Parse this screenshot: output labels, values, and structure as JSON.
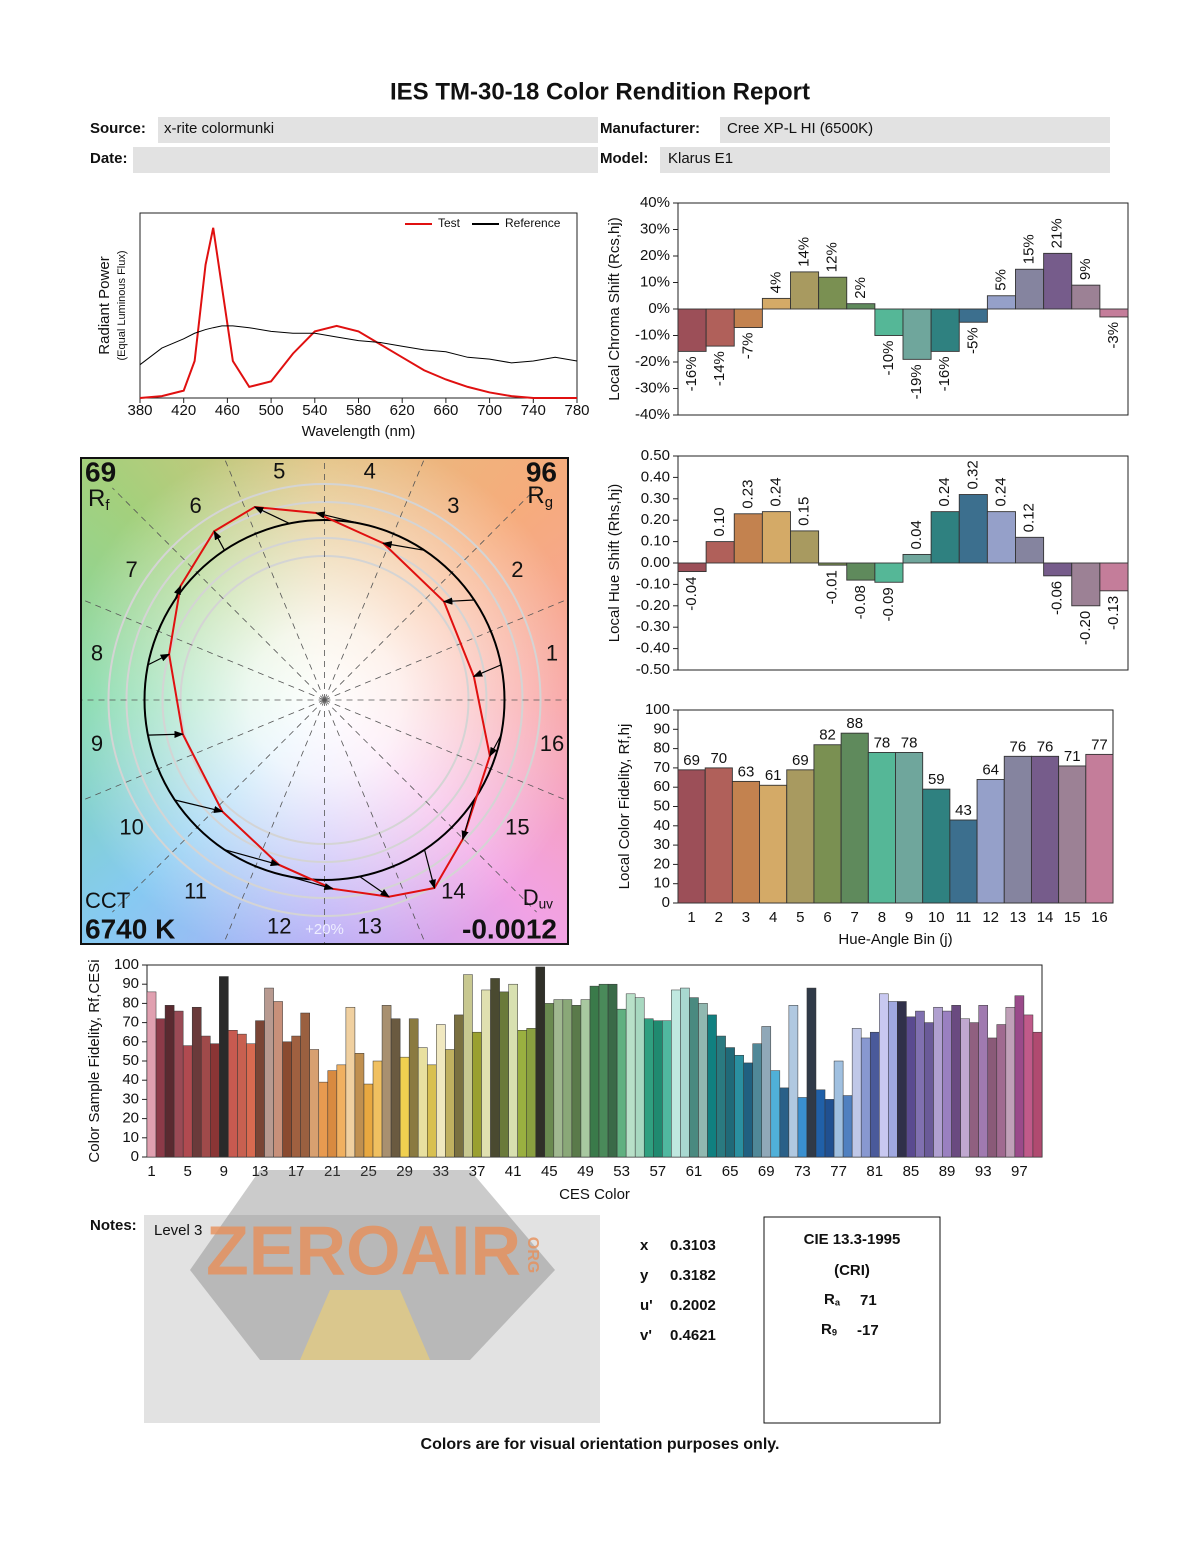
{
  "header": {
    "title": "IES TM-30-18 Color Rendition Report",
    "fields": [
      {
        "label": "Source:",
        "value": "x-rite colormunki"
      },
      {
        "label": "Manufacturer:",
        "value": "Cree XP-L HI (6500K)"
      },
      {
        "label": "Date:"
      },
      {
        "label": "Model:",
        "value": "Klarus E1"
      }
    ]
  },
  "chart_data": [
    {
      "type": "line",
      "ylabel": "Radiant Power",
      "ylabel_sub": "(Equal Luminous Flux)",
      "xlabel": "Wavelength (nm)",
      "x": [
        380,
        400,
        420,
        430,
        440,
        447,
        455,
        465,
        480,
        500,
        520,
        540,
        560,
        580,
        600,
        620,
        640,
        660,
        680,
        700,
        720,
        740,
        760,
        780
      ],
      "series": [
        {
          "name": "Test",
          "color": "#e01010",
          "values": [
            0,
            0.01,
            0.04,
            0.2,
            0.72,
            0.92,
            0.6,
            0.2,
            0.06,
            0.09,
            0.24,
            0.36,
            0.39,
            0.36,
            0.29,
            0.22,
            0.15,
            0.1,
            0.06,
            0.03,
            0.01,
            0,
            0,
            0
          ]
        },
        {
          "name": "Reference",
          "color": "#000000",
          "values": [
            0.18,
            0.27,
            0.32,
            0.35,
            0.37,
            0.38,
            0.39,
            0.39,
            0.38,
            0.36,
            0.35,
            0.35,
            0.33,
            0.31,
            0.3,
            0.28,
            0.26,
            0.25,
            0.22,
            0.21,
            0.19,
            0.2,
            0.22,
            0.2
          ]
        }
      ],
      "xlim": [
        380,
        780
      ],
      "xticks": [
        380,
        420,
        460,
        500,
        540,
        580,
        620,
        660,
        700,
        740,
        780
      ],
      "ylim": [
        0,
        1
      ],
      "legend": "upper right"
    },
    {
      "type": "bar",
      "ylabel": "Local Chroma Shift (Rcs,hj)",
      "values": [
        -16,
        -14,
        -7,
        4,
        14,
        12,
        2,
        -10,
        -19,
        -16,
        -5,
        5,
        15,
        21,
        9,
        -3
      ],
      "value_labels": [
        "-16%",
        "-14%",
        "-7%",
        "4%",
        "14%",
        "12%",
        "2%",
        "-10%",
        "-19%",
        "-16%",
        "-5%",
        "5%",
        "15%",
        "21%",
        "9%",
        "-3%"
      ],
      "colors": [
        "#9c4f58",
        "#b0605a",
        "#c3824f",
        "#d4aa67",
        "#a89a60",
        "#7a9052",
        "#5f8a5c",
        "#55b797",
        "#6fa69c",
        "#2f8180",
        "#3c6f8e",
        "#95a0c9",
        "#85849f",
        "#765c8b",
        "#9c8195",
        "#c47d9a"
      ],
      "ylim": [
        -40,
        40
      ],
      "yticks": [
        {
          "value": -40,
          "label": "-40%"
        },
        {
          "value": -30,
          "label": "-30%"
        },
        {
          "value": -20,
          "label": "-20%"
        },
        {
          "value": -10,
          "label": "-10%"
        },
        {
          "value": 0,
          "label": "0%"
        },
        {
          "value": 10,
          "label": "10%"
        },
        {
          "value": 20,
          "label": "20%"
        },
        {
          "value": 30,
          "label": "30%"
        },
        {
          "value": 40,
          "label": "40%"
        }
      ]
    },
    {
      "type": "bar",
      "ylabel": "Local Hue Shift (Rhs,hj)",
      "values": [
        -0.04,
        0.1,
        0.23,
        0.24,
        0.15,
        -0.01,
        -0.08,
        -0.09,
        0.04,
        0.24,
        0.32,
        0.24,
        0.12,
        -0.06,
        -0.2,
        -0.13
      ],
      "value_labels": [
        "-0.04",
        "0.10",
        "0.23",
        "0.24",
        "0.15",
        "-0.01",
        "-0.08",
        "-0.09",
        "0.04",
        "0.24",
        "0.32",
        "0.24",
        "0.12",
        "-0.06",
        "-0.20",
        "-0.13"
      ],
      "colors": [
        "#9c4f58",
        "#b0605a",
        "#c3824f",
        "#d4aa67",
        "#a89a60",
        "#7a9052",
        "#5f8a5c",
        "#55b797",
        "#6fa69c",
        "#2f8180",
        "#3c6f8e",
        "#95a0c9",
        "#85849f",
        "#765c8b",
        "#9c8195",
        "#c47d9a"
      ],
      "ylim": [
        -0.5,
        0.5
      ],
      "yticks": [
        {
          "value": -0.5,
          "label": "-0.50"
        },
        {
          "value": -0.4,
          "label": "-0.40"
        },
        {
          "value": -0.3,
          "label": "-0.30"
        },
        {
          "value": -0.2,
          "label": "-0.20"
        },
        {
          "value": -0.1,
          "label": "-0.10"
        },
        {
          "value": 0,
          "label": "0.00"
        },
        {
          "value": 0.1,
          "label": "0.10"
        },
        {
          "value": 0.2,
          "label": "0.20"
        },
        {
          "value": 0.3,
          "label": "0.30"
        },
        {
          "value": 0.4,
          "label": "0.40"
        },
        {
          "value": 0.5,
          "label": "0.50"
        }
      ]
    },
    {
      "type": "bar",
      "ylabel": "Local Color Fidelity, Rf,hj",
      "xlabel": "Hue-Angle Bin (j)",
      "categories": [
        "1",
        "2",
        "3",
        "4",
        "5",
        "6",
        "7",
        "8",
        "9",
        "10",
        "11",
        "12",
        "13",
        "14",
        "15",
        "16"
      ],
      "values": [
        69,
        70,
        63,
        61,
        69,
        82,
        88,
        78,
        78,
        59,
        43,
        64,
        76,
        76,
        71,
        77
      ],
      "colors": [
        "#9c4f58",
        "#b0605a",
        "#c3824f",
        "#d4aa67",
        "#a89a60",
        "#7a9052",
        "#5f8a5c",
        "#55b797",
        "#6fa69c",
        "#2f8180",
        "#3c6f8e",
        "#95a0c9",
        "#85849f",
        "#765c8b",
        "#9c8195",
        "#c47d9a"
      ],
      "ylim": [
        0,
        100
      ],
      "yticks": [
        0,
        10,
        20,
        30,
        40,
        50,
        60,
        70,
        80,
        90,
        100
      ]
    },
    {
      "type": "bar",
      "ylabel": "Color Sample Fidelity, Rf,CESi",
      "xlabel": "CES Color",
      "categories": [
        "1",
        null,
        null,
        null,
        "5",
        null,
        null,
        null,
        "9",
        null,
        null,
        null,
        "13",
        null,
        null,
        null,
        "17",
        null,
        null,
        null,
        "21",
        null,
        null,
        null,
        "25",
        null,
        null,
        null,
        "29",
        null,
        null,
        null,
        "33",
        null,
        null,
        null,
        "37",
        null,
        null,
        null,
        "41",
        null,
        null,
        null,
        "45",
        null,
        null,
        null,
        "49",
        null,
        null,
        null,
        "53",
        null,
        null,
        null,
        "57",
        null,
        null,
        null,
        "61",
        null,
        null,
        null,
        "65",
        null,
        null,
        null,
        "69",
        null,
        null,
        null,
        "73",
        null,
        null,
        null,
        "77",
        null,
        null,
        null,
        "81",
        null,
        null,
        null,
        "85",
        null,
        null,
        null,
        "89",
        null,
        null,
        null,
        "93",
        null,
        null,
        null,
        "97",
        null,
        null
      ],
      "values": [
        86,
        72,
        79,
        76,
        58,
        78,
        63,
        59,
        94,
        66,
        64,
        59,
        71,
        88,
        81,
        60,
        63,
        75,
        56,
        39,
        45,
        48,
        78,
        54,
        38,
        50,
        79,
        72,
        52,
        72,
        57,
        48,
        69,
        56,
        74,
        95,
        65,
        87,
        93,
        86,
        90,
        66,
        67,
        99,
        80,
        82,
        82,
        79,
        82,
        89,
        90,
        90,
        77,
        85,
        83,
        72,
        71,
        71,
        87,
        88,
        83,
        80,
        74,
        63,
        57,
        53,
        49,
        59,
        68,
        45,
        36,
        79,
        31,
        88,
        35,
        30,
        50,
        32,
        67,
        62,
        65,
        85,
        81,
        81,
        73,
        76,
        70,
        78,
        76,
        79,
        72,
        70,
        79,
        62,
        69,
        78,
        84,
        74,
        65
      ],
      "colors": [
        "#e0a0b0",
        "#8c3a48",
        "#5a2a30",
        "#9a4a55",
        "#b04a50",
        "#6a3a3a",
        "#a04a4a",
        "#8a3535",
        "#2a2a2a",
        "#c85a50",
        "#c86050",
        "#d86a50",
        "#7a4535",
        "#b89a90",
        "#c8907a",
        "#8a4a30",
        "#a06040",
        "#9a6040",
        "#d8a070",
        "#e89a50",
        "#d88a40",
        "#f0b060",
        "#f0d0a0",
        "#c09050",
        "#e8a840",
        "#f0c060",
        "#a89070",
        "#6a5a40",
        "#f0d050",
        "#8a7a40",
        "#e8e0a0",
        "#d8c050",
        "#f0e8c0",
        "#c0b060",
        "#7a7040",
        "#c8c890",
        "#9aa030",
        "#e0e0b0",
        "#4a4a30",
        "#6a7a3a",
        "#d8e0b0",
        "#9ab040",
        "#8aa040",
        "#303028",
        "#6a8a50",
        "#a0b890",
        "#8aa878",
        "#5a7a4a",
        "#a8c8a0",
        "#3a7a4a",
        "#4a8a5a",
        "#3a6a48",
        "#60b080",
        "#b8e0c8",
        "#a8d8c0",
        "#30a080",
        "#208a70",
        "#50b8a0",
        "#c0e8e0",
        "#a8d8d0",
        "#4a8a80",
        "#90b8b0",
        "#108080",
        "#2a7a80",
        "#206a78",
        "#2a90a0",
        "#206080",
        "#508898",
        "#90a8b8",
        "#50b0d8",
        "#2a6088",
        "#b0c8e0",
        "#3a90d0",
        "#303a48",
        "#2060a8",
        "#205090",
        "#a0c0e0",
        "#5080c0",
        "#c0c8e8",
        "#8898d0",
        "#4a5a9a",
        "#c8c8f0",
        "#a0a8e0",
        "#30304a",
        "#5a4a90",
        "#8070b0",
        "#6a5a98",
        "#b0a0d0",
        "#9a80c0",
        "#6a4a80",
        "#c0a8d0",
        "#906080",
        "#a07ab0",
        "#8a5a78",
        "#a06a90",
        "#c0a0b8",
        "#9a4a8a",
        "#c05a8a",
        "#b04a70"
      ],
      "ylim": [
        0,
        100
      ],
      "yticks": [
        0,
        10,
        20,
        30,
        40,
        50,
        60,
        70,
        80,
        90,
        100
      ]
    },
    {
      "type": "vector",
      "rf": 69,
      "rf_label": "Rf",
      "rg": 96,
      "rg_label": "Rg",
      "cct_label": "CCT",
      "cct": "6740 K",
      "duv_label": "Duv",
      "duv": -0.0012,
      "bins": [
        "1",
        "2",
        "3",
        "4",
        "5",
        "6",
        "7",
        "8",
        "9",
        "10",
        "11",
        "12",
        "13",
        "14",
        "15",
        "16"
      ],
      "ring_label": "+20%"
    }
  ],
  "notes": {
    "label": "Notes:",
    "text": "Level 3"
  },
  "chromaticity": [
    {
      "label": "x",
      "value": 0.3103
    },
    {
      "label": "y",
      "value": 0.3182
    },
    {
      "label": "u'",
      "value": 0.2002
    },
    {
      "label": "v'",
      "value": 0.4621
    }
  ],
  "cri": {
    "title": "CIE 13.3-1995",
    "subtitle": "(CRI)",
    "ra_label": "Ra",
    "ra": 71,
    "r9_label": "R9",
    "r9": -17
  },
  "watermark": {
    "text": "ZEROAIR",
    "suffix": "ORG"
  },
  "footer": "Colors are for visual orientation purposes only."
}
